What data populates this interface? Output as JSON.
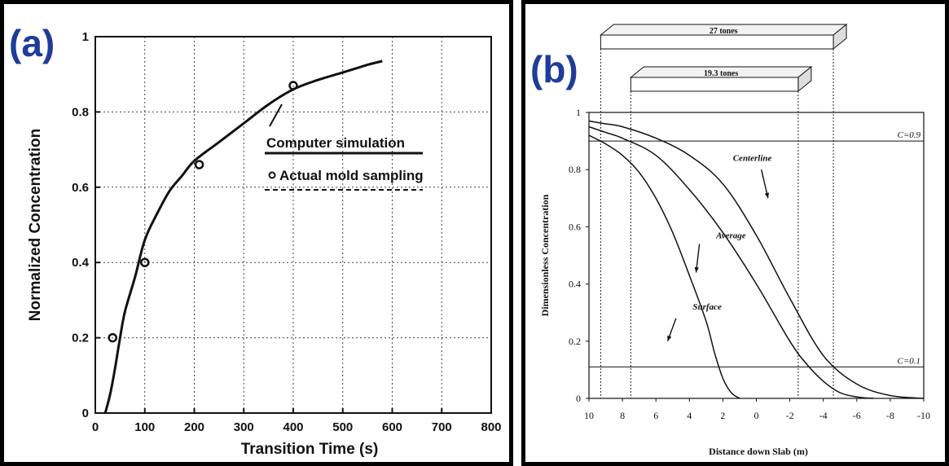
{
  "chart_data": [
    {
      "panel_tag": "(a)",
      "type": "line",
      "xlabel": "Transition Time (s)",
      "ylabel": "Normalized Concentration",
      "xlim": [
        0,
        800
      ],
      "ylim": [
        0,
        1
      ],
      "x_ticks": [
        "0",
        "100",
        "200",
        "300",
        "400",
        "500",
        "600",
        "700",
        "800"
      ],
      "y_ticks": [
        "0",
        "0.2",
        "0.4",
        "0.6",
        "0.8",
        "1"
      ],
      "grid": true,
      "legend_position": "right",
      "series": [
        {
          "name": "Computer simulation",
          "style": "solid-line",
          "x": [
            20,
            30,
            40,
            50,
            60,
            80,
            100,
            125,
            150,
            175,
            200,
            250,
            300,
            350,
            400,
            450,
            500,
            550,
            580
          ],
          "y": [
            0,
            0.05,
            0.12,
            0.2,
            0.27,
            0.36,
            0.46,
            0.53,
            0.59,
            0.63,
            0.67,
            0.72,
            0.77,
            0.82,
            0.86,
            0.885,
            0.905,
            0.925,
            0.935
          ]
        },
        {
          "name": "Actual mold sampling",
          "style": "circle-markers",
          "x": [
            35,
            100,
            210,
            400
          ],
          "y": [
            0.2,
            0.4,
            0.66,
            0.87
          ]
        }
      ]
    },
    {
      "panel_tag": "(b)",
      "type": "line",
      "xlabel": "Distance down Slab (m)",
      "ylabel": "Dimensionless Concentration",
      "xlim": [
        10,
        -10
      ],
      "ylim": [
        0,
        1
      ],
      "x_ticks": [
        "10",
        "8",
        "6",
        "4",
        "2",
        "0",
        "-2",
        "-4",
        "-6",
        "-8",
        "-10"
      ],
      "y_ticks": [
        "0",
        "0.2",
        "0.4",
        "0.6",
        "0.8",
        "1"
      ],
      "grid": false,
      "reference_lines": [
        {
          "label": "C=0.9",
          "y": 0.9
        },
        {
          "label": "C=0.1",
          "y": 0.11
        }
      ],
      "slabs": [
        {
          "label": "27  tones",
          "x_start": 9.3,
          "x_end": -4.6
        },
        {
          "label": "19.3  tones",
          "x_start": 7.5,
          "x_end": -2.5
        }
      ],
      "series": [
        {
          "name": "Centerline",
          "x": [
            10,
            9,
            8,
            6,
            4,
            2,
            0,
            -2,
            -4,
            -6,
            -8,
            -10
          ],
          "y": [
            0.97,
            0.96,
            0.95,
            0.91,
            0.85,
            0.75,
            0.57,
            0.35,
            0.15,
            0.05,
            0.01,
            0
          ]
        },
        {
          "name": "Average",
          "x": [
            10,
            9,
            8,
            6,
            4,
            2,
            0,
            -2,
            -3,
            -4,
            -5,
            -6,
            -7
          ],
          "y": [
            0.95,
            0.93,
            0.91,
            0.85,
            0.73,
            0.58,
            0.4,
            0.2,
            0.12,
            0.06,
            0.02,
            0.005,
            0
          ]
        },
        {
          "name": "Surface",
          "x": [
            10,
            9,
            8,
            7,
            6,
            5,
            4,
            3,
            2.5,
            2,
            1.5,
            1
          ],
          "y": [
            0.92,
            0.89,
            0.85,
            0.79,
            0.7,
            0.58,
            0.43,
            0.27,
            0.16,
            0.07,
            0.02,
            0
          ]
        }
      ]
    }
  ]
}
